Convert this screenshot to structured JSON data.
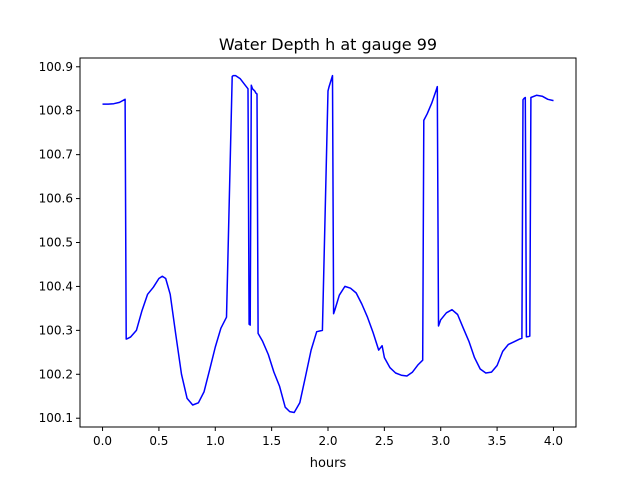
{
  "chart_data": {
    "type": "line",
    "title": "Water Depth h at gauge 99",
    "xlabel": "hours",
    "ylabel": "",
    "xlim": [
      -0.2,
      4.2
    ],
    "ylim": [
      100.08,
      100.92
    ],
    "xticks": [
      0.0,
      0.5,
      1.0,
      1.5,
      2.0,
      2.5,
      3.0,
      3.5,
      4.0
    ],
    "xtick_labels": [
      "0.0",
      "0.5",
      "1.0",
      "1.5",
      "2.0",
      "2.5",
      "3.0",
      "3.5",
      "4.0"
    ],
    "yticks": [
      100.1,
      100.2,
      100.3,
      100.4,
      100.5,
      100.6,
      100.7,
      100.8,
      100.9
    ],
    "ytick_labels": [
      "100.1",
      "100.2",
      "100.3",
      "100.4",
      "100.5",
      "100.6",
      "100.7",
      "100.8",
      "100.9"
    ],
    "grid": false,
    "legend": "none",
    "series": [
      {
        "color": "#0000ff",
        "x": [
          0.0,
          0.05,
          0.1,
          0.15,
          0.2,
          0.21,
          0.22,
          0.25,
          0.3,
          0.35,
          0.4,
          0.45,
          0.5,
          0.53,
          0.56,
          0.6,
          0.65,
          0.7,
          0.75,
          0.8,
          0.85,
          0.9,
          0.95,
          1.0,
          1.05,
          1.1,
          1.15,
          1.16,
          1.18,
          1.22,
          1.26,
          1.29,
          1.3,
          1.31,
          1.32,
          1.33,
          1.35,
          1.36,
          1.37,
          1.38,
          1.42,
          1.47,
          1.52,
          1.57,
          1.62,
          1.66,
          1.7,
          1.75,
          1.8,
          1.85,
          1.9,
          1.95,
          2.0,
          2.01,
          2.04,
          2.05,
          2.06,
          2.1,
          2.15,
          2.2,
          2.25,
          2.3,
          2.35,
          2.4,
          2.45,
          2.48,
          2.5,
          2.55,
          2.6,
          2.65,
          2.7,
          2.75,
          2.8,
          2.84,
          2.85,
          2.88,
          2.92,
          2.96,
          2.97,
          2.98,
          3.0,
          3.05,
          3.1,
          3.15,
          3.2,
          3.25,
          3.3,
          3.35,
          3.4,
          3.45,
          3.5,
          3.55,
          3.6,
          3.65,
          3.7,
          3.72,
          3.73,
          3.74,
          3.75,
          3.76,
          3.78,
          3.79,
          3.8,
          3.85,
          3.9,
          3.95,
          4.0
        ],
        "y": [
          100.815,
          100.815,
          100.816,
          100.819,
          100.826,
          100.28,
          100.281,
          100.285,
          100.3,
          100.345,
          100.382,
          100.398,
          100.418,
          100.423,
          100.418,
          100.382,
          100.29,
          100.2,
          100.145,
          100.13,
          100.135,
          100.16,
          100.21,
          100.262,
          100.305,
          100.33,
          100.878,
          100.88,
          100.88,
          100.873,
          100.86,
          100.85,
          100.314,
          100.312,
          100.858,
          100.85,
          100.845,
          100.84,
          100.838,
          100.293,
          100.275,
          100.245,
          100.205,
          100.173,
          100.125,
          100.115,
          100.113,
          100.135,
          100.195,
          100.255,
          100.297,
          100.3,
          100.845,
          100.855,
          100.88,
          100.338,
          100.346,
          100.38,
          100.4,
          100.396,
          100.385,
          100.36,
          100.33,
          100.295,
          100.255,
          100.265,
          100.238,
          100.215,
          100.203,
          100.198,
          100.196,
          100.205,
          100.222,
          100.232,
          100.778,
          100.793,
          100.817,
          100.847,
          100.855,
          100.31,
          100.324,
          100.34,
          100.347,
          100.336,
          100.305,
          100.275,
          100.238,
          100.212,
          100.203,
          100.205,
          100.22,
          100.252,
          100.268,
          100.274,
          100.28,
          100.282,
          100.825,
          100.828,
          100.83,
          100.285,
          100.286,
          100.287,
          100.83,
          100.835,
          100.833,
          100.826,
          100.823
        ]
      }
    ]
  }
}
